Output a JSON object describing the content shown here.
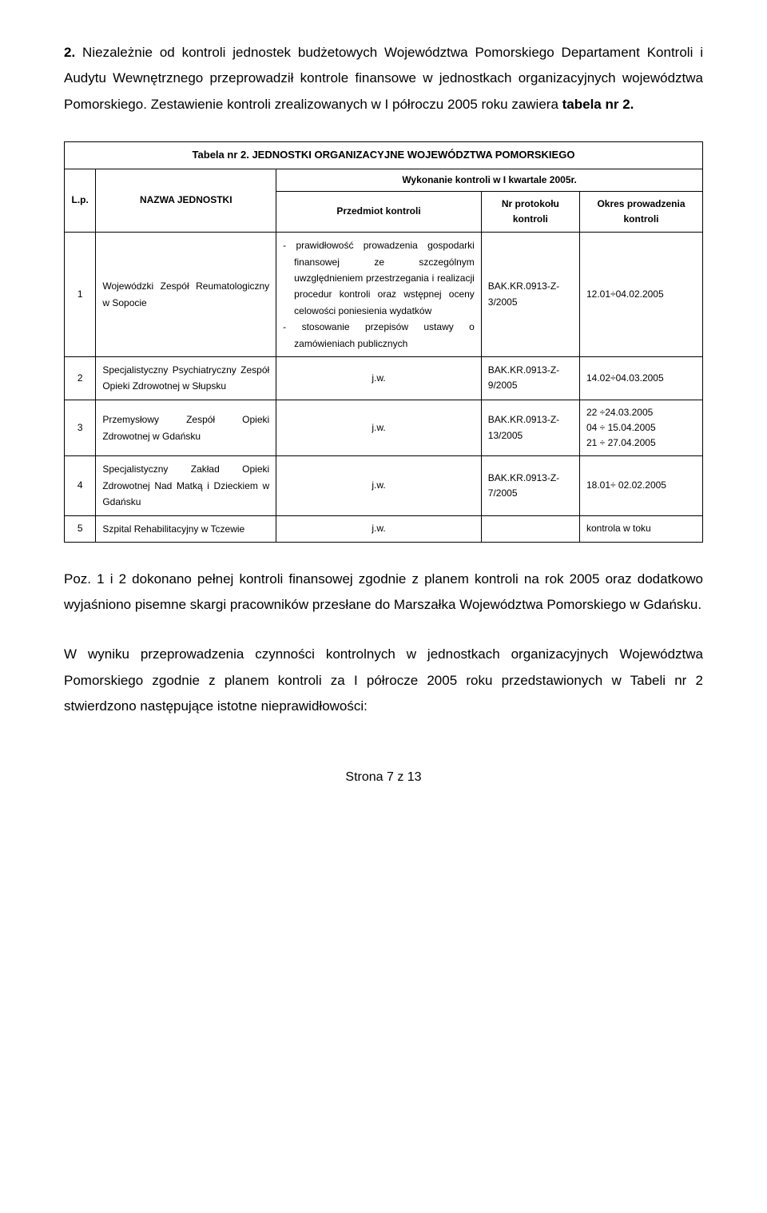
{
  "intro": {
    "number": "2.",
    "text_before_table_title": " Niezależnie od kontroli jednostek budżetowych Województwa Pomorskiego Departament Kontroli i Audytu Wewnętrznego przeprowadził kontrole finansowe w jednostkach organizacyjnych województwa Pomorskiego. Zestawienie kontroli zrealizowanych w I półroczu 2005 roku zawiera ",
    "table_ref": "tabela nr 2.",
    "table_caption": "Tabela nr 2. JEDNOSTKI ORGANIZACYJNE  WOJEWÓDZTWA POMORSKIEGO",
    "sub_caption": "Wykonanie kontroli w I kwartale 2005r."
  },
  "headers": {
    "lp": "L.p.",
    "name": "NAZWA JEDNOSTKI",
    "subject": "Przedmiot kontroli",
    "protocol": "Nr protokołu kontroli",
    "period": "Okres prowadzenia kontroli"
  },
  "rows": [
    {
      "lp": "1",
      "name": "Wojewódzki Zespół Reumatologiczny w Sopocie",
      "subject_items": [
        "prawidłowość prowadzenia gospodarki finansowej ze szczególnym uwzględnieniem przestrzegania i realizacji procedur kontroli oraz wstępnej oceny celowości poniesienia wydatków",
        "stosowanie przepisów ustawy o zamówieniach publicznych"
      ],
      "protocol": "BAK.KR.0913-Z-3/2005",
      "period": "12.01÷04.02.2005"
    },
    {
      "lp": "2",
      "name": "Specjalistyczny Psychiatryczny Zespół Opieki Zdrowotnej w Słupsku",
      "subject": "j.w.",
      "protocol": "BAK.KR.0913-Z-9/2005",
      "period": "14.02÷04.03.2005"
    },
    {
      "lp": "3",
      "name": "Przemysłowy Zespół Opieki Zdrowotnej w Gdańsku",
      "subject": "j.w.",
      "protocol": "BAK.KR.0913-Z-13/2005",
      "period_lines": [
        "22 ÷24.03.2005",
        "04 ÷ 15.04.2005",
        "21 ÷ 27.04.2005"
      ]
    },
    {
      "lp": "4",
      "name": "Specjalistyczny Zakład Opieki Zdrowotnej Nad Matką i Dzieckiem w Gdańsku",
      "subject": "j.w.",
      "protocol": "BAK.KR.0913-Z-7/2005",
      "period": "18.01÷ 02.02.2005"
    },
    {
      "lp": "5",
      "name": "Szpital Rehabilitacyjny w Tczewie",
      "subject": "j.w.",
      "protocol": "",
      "period": "kontrola w toku"
    }
  ],
  "outro": {
    "p1": "Poz. 1 i 2 dokonano pełnej kontroli finansowej zgodnie z planem kontroli na rok 2005 oraz dodatkowo wyjaśniono pisemne skargi pracowników przesłane do Marszałka Województwa Pomorskiego w Gdańsku.",
    "p2": "W wyniku przeprowadzenia czynności kontrolnych w jednostkach organizacyjnych Województwa Pomorskiego zgodnie z planem kontroli za I półrocze 2005 roku przedstawionych w Tabeli nr 2 stwierdzono następujące istotne nieprawidłowości:"
  },
  "footer": "Strona 7 z 13"
}
